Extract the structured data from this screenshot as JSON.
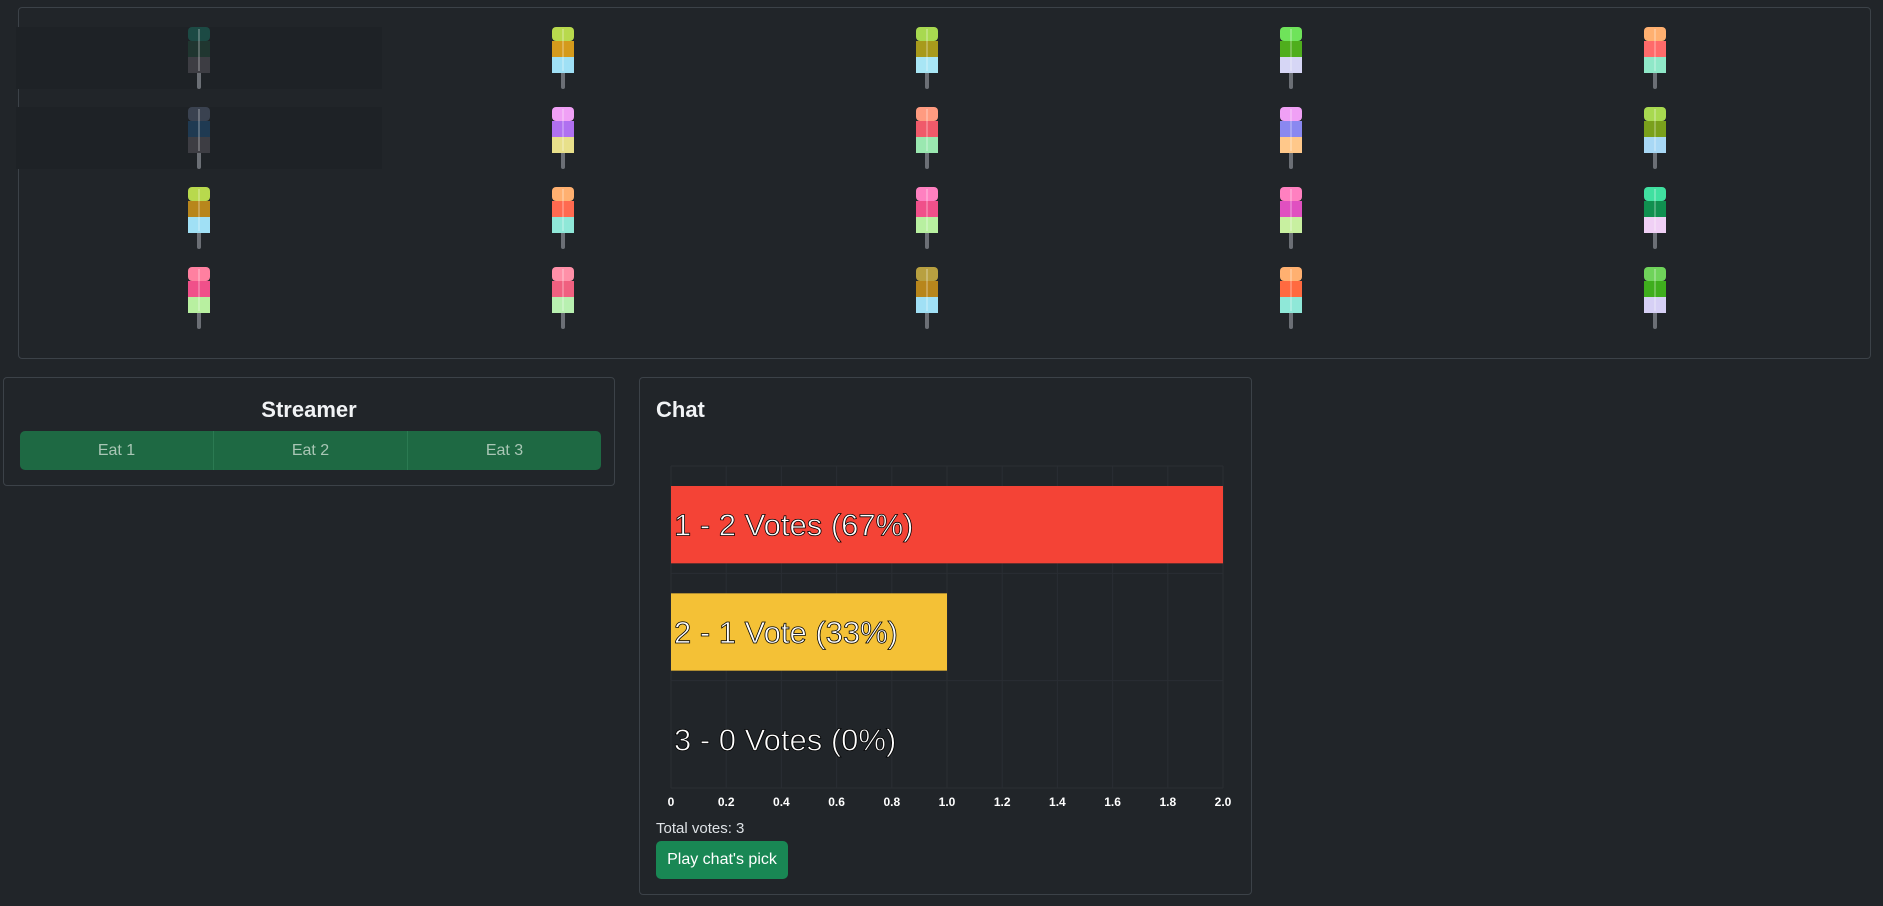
{
  "board": {
    "rows": [
      [
        {
          "eaten": true,
          "colors": [
            "#1c4a44",
            "#203630",
            "#3d3d43"
          ]
        },
        {
          "eaten": false,
          "colors": [
            "#b8d94d",
            "#d49a1c",
            "#9fe0f5"
          ]
        },
        {
          "eaten": false,
          "colors": [
            "#a8d950",
            "#a89a1c",
            "#a8e6f5"
          ]
        },
        {
          "eaten": false,
          "colors": [
            "#6fe35a",
            "#4fae1d",
            "#d6d6f5"
          ]
        },
        {
          "eaten": false,
          "colors": [
            "#ffb070",
            "#ff6a6a",
            "#8fe8c8"
          ]
        }
      ],
      [
        {
          "eaten": true,
          "colors": [
            "#3a4250",
            "#1f3a52",
            "#3d3d43"
          ]
        },
        {
          "eaten": false,
          "colors": [
            "#f0a0f5",
            "#b070f0",
            "#e8e08a"
          ]
        },
        {
          "eaten": false,
          "colors": [
            "#ff9b80",
            "#f05a6a",
            "#9ae8b0"
          ]
        },
        {
          "eaten": false,
          "colors": [
            "#f0a0f5",
            "#8a88f0",
            "#ffc88a"
          ]
        },
        {
          "eaten": false,
          "colors": [
            "#a8d950",
            "#7aa01c",
            "#a8d8f5"
          ]
        }
      ],
      [
        {
          "eaten": false,
          "colors": [
            "#b8d94d",
            "#b8861c",
            "#a0e0f5"
          ]
        },
        {
          "eaten": false,
          "colors": [
            "#ffb070",
            "#ff6a50",
            "#8fe8d8"
          ]
        },
        {
          "eaten": false,
          "colors": [
            "#ff80c0",
            "#f0508a",
            "#b8f0a0"
          ]
        },
        {
          "eaten": false,
          "colors": [
            "#ff80c0",
            "#e050c0",
            "#c8f0a0"
          ]
        },
        {
          "eaten": false,
          "colors": [
            "#40e0a0",
            "#109050",
            "#f0d0f5"
          ]
        }
      ],
      [
        {
          "eaten": false,
          "colors": [
            "#ff80a0",
            "#f0508a",
            "#b8f0a0"
          ]
        },
        {
          "eaten": false,
          "colors": [
            "#ff90a8",
            "#f06080",
            "#b8f0b0"
          ]
        },
        {
          "eaten": false,
          "colors": [
            "#b8a040",
            "#b8861c",
            "#a0e0f5"
          ]
        },
        {
          "eaten": false,
          "colors": [
            "#ffb070",
            "#ff6a40",
            "#8fe8d8"
          ]
        },
        {
          "eaten": false,
          "colors": [
            "#6fd35a",
            "#3fae1d",
            "#d6d0f5"
          ]
        }
      ]
    ]
  },
  "streamer": {
    "title": "Streamer",
    "buttons": [
      "Eat 1",
      "Eat 2",
      "Eat 3"
    ]
  },
  "chat": {
    "title": "Chat",
    "total_votes_text": "Total votes: 3",
    "play_button_label": "Play chat's pick"
  },
  "chart_data": {
    "type": "bar",
    "orientation": "horizontal",
    "categories": [
      "1 - 2 Votes (67%)",
      "2 - 1 Vote (33%)",
      "3 - 0 Votes (0%)"
    ],
    "values": [
      2,
      1,
      0
    ],
    "colors": [
      "#f44336",
      "#f4c136",
      "#e0e0e0"
    ],
    "xlim": [
      0,
      2
    ],
    "xticks": [
      "0",
      "0.2",
      "0.4",
      "0.6",
      "0.8",
      "1.0",
      "1.2",
      "1.4",
      "1.6",
      "1.8",
      "2.0"
    ],
    "grid": true
  }
}
